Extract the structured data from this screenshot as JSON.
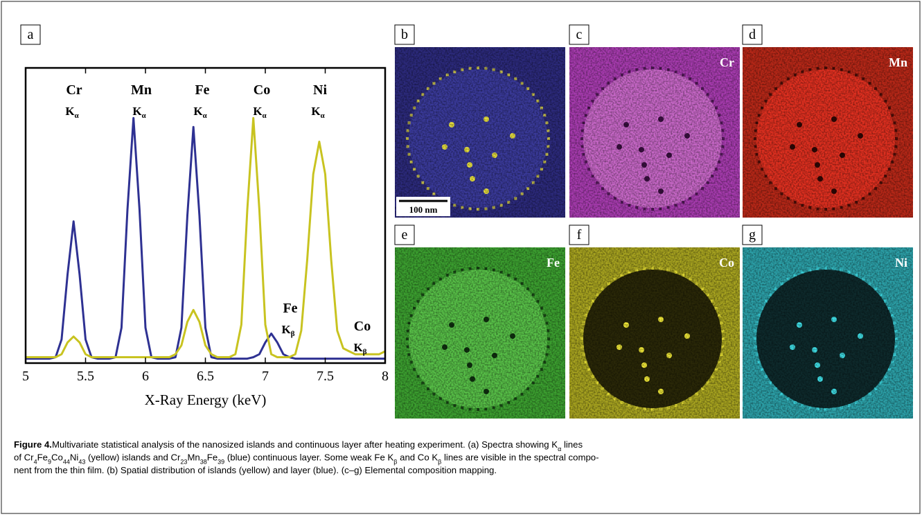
{
  "chart_data": {
    "type": "line",
    "panel": "a",
    "xlabel": "X-Ray Energy (keV)",
    "xlim": [
      5,
      8
    ],
    "xticks": [
      5,
      5.5,
      6,
      6.5,
      7,
      7.5,
      8
    ],
    "ylim": [
      0,
      100
    ],
    "x": [
      5.0,
      5.05,
      5.1,
      5.15,
      5.2,
      5.25,
      5.3,
      5.35,
      5.4,
      5.45,
      5.5,
      5.55,
      5.6,
      5.65,
      5.7,
      5.75,
      5.8,
      5.85,
      5.9,
      5.95,
      6.0,
      6.05,
      6.1,
      6.15,
      6.2,
      6.25,
      6.3,
      6.35,
      6.4,
      6.45,
      6.5,
      6.55,
      6.6,
      6.65,
      6.7,
      6.75,
      6.8,
      6.85,
      6.9,
      6.95,
      7.0,
      7.05,
      7.1,
      7.15,
      7.2,
      7.25,
      7.3,
      7.35,
      7.4,
      7.45,
      7.5,
      7.55,
      7.6,
      7.65,
      7.7,
      7.75,
      7.8,
      7.85,
      7.9,
      7.95,
      8.0
    ],
    "series": [
      {
        "color": "#2e3192",
        "values": [
          1.5,
          1.5,
          1.5,
          1.5,
          1.5,
          2,
          8,
          30,
          48,
          30,
          8,
          2,
          1.5,
          1.5,
          1.5,
          2,
          12,
          52,
          83,
          52,
          12,
          2,
          1.5,
          1.5,
          1.5,
          2,
          12,
          50,
          80,
          50,
          12,
          2,
          1.5,
          1.5,
          1.5,
          1.5,
          1.5,
          1.5,
          2,
          3,
          7,
          10,
          7,
          3,
          2,
          1.5,
          1.5,
          1.5,
          1.5,
          1.5,
          1.5,
          1.5,
          1.5,
          1.5,
          1.5,
          1.5,
          1.5,
          1.5,
          1.5,
          1.5,
          1.5
        ]
      },
      {
        "color": "#c8c320",
        "values": [
          2,
          2,
          2,
          2,
          2,
          2,
          3,
          7,
          9,
          7,
          3,
          2,
          2,
          2,
          2,
          2,
          2,
          2,
          2,
          2,
          2,
          2,
          2,
          2,
          2,
          3,
          6,
          14,
          18,
          14,
          6,
          3,
          2,
          2,
          2,
          3,
          13,
          52,
          83,
          52,
          13,
          3,
          2,
          2,
          2,
          3,
          11,
          35,
          64,
          75,
          64,
          35,
          11,
          5,
          4,
          3,
          3,
          3,
          3,
          3,
          4
        ]
      }
    ],
    "annotations": [
      {
        "element": "Cr",
        "line": "K",
        "sub": "α"
      },
      {
        "element": "Mn",
        "line": "K",
        "sub": "α"
      },
      {
        "element": "Fe",
        "line": "K",
        "sub": "α"
      },
      {
        "element": "Co",
        "line": "K",
        "sub": "α"
      },
      {
        "element": "Ni",
        "line": "K",
        "sub": "α"
      },
      {
        "element": "Fe",
        "line": "K",
        "sub": "β"
      },
      {
        "element": "Co",
        "line": "K",
        "sub": "β"
      }
    ]
  },
  "panels": [
    {
      "letter": "b",
      "bg": "#2c2a7c",
      "circle": "#3a3a9a",
      "dots": "#e8e040",
      "scale_bar": "100 nm"
    },
    {
      "letter": "c",
      "element": "Cr",
      "bg": "#a83cb0",
      "circle": "#c868c8",
      "dots": "#3a1040"
    },
    {
      "letter": "d",
      "element": "Mn",
      "bg": "#b82818",
      "circle": "#e03020",
      "dots": "#300805"
    },
    {
      "letter": "e",
      "element": "Fe",
      "bg": "#3ca030",
      "circle": "#58c048",
      "dots": "#103010"
    },
    {
      "letter": "f",
      "element": "Co",
      "bg": "#a8a420",
      "circle": "#2a2808",
      "dots": "#f0e838"
    },
    {
      "letter": "g",
      "element": "Ni",
      "bg": "#2ca0a8",
      "circle": "#0e2a2c",
      "dots": "#40e0e8"
    }
  ],
  "caption": {
    "label": "Figure 4.",
    "lines": [
      [
        {
          "text": "Multivariate statistical analysis of the nanosized islands and continuous layer after heating experiment. (a) Spectra showing K"
        },
        {
          "text": "α",
          "sub": true
        },
        {
          "text": " lines"
        }
      ],
      [
        {
          "text": "of Cr"
        },
        {
          "text": "4",
          "sub": true
        },
        {
          "text": "Fe"
        },
        {
          "text": "9",
          "sub": true
        },
        {
          "text": "Co"
        },
        {
          "text": "44",
          "sub": true
        },
        {
          "text": "Ni"
        },
        {
          "text": "43",
          "sub": true
        },
        {
          "text": " (yellow) islands and Cr"
        },
        {
          "text": "23",
          "sub": true
        },
        {
          "text": "Mn"
        },
        {
          "text": "38",
          "sub": true
        },
        {
          "text": "Fe"
        },
        {
          "text": "39",
          "sub": true
        },
        {
          "text": " (blue) continuous layer. Some weak Fe K"
        },
        {
          "text": "β",
          "sub": true
        },
        {
          "text": " and Co K"
        },
        {
          "text": "β",
          "sub": true
        },
        {
          "text": " lines are visible in the spectral compo-"
        }
      ],
      [
        {
          "text": "nent from the thin film. (b) Spatial distribution of islands (yellow) and layer (blue). (c–g) Elemental composition mapping."
        }
      ]
    ]
  }
}
